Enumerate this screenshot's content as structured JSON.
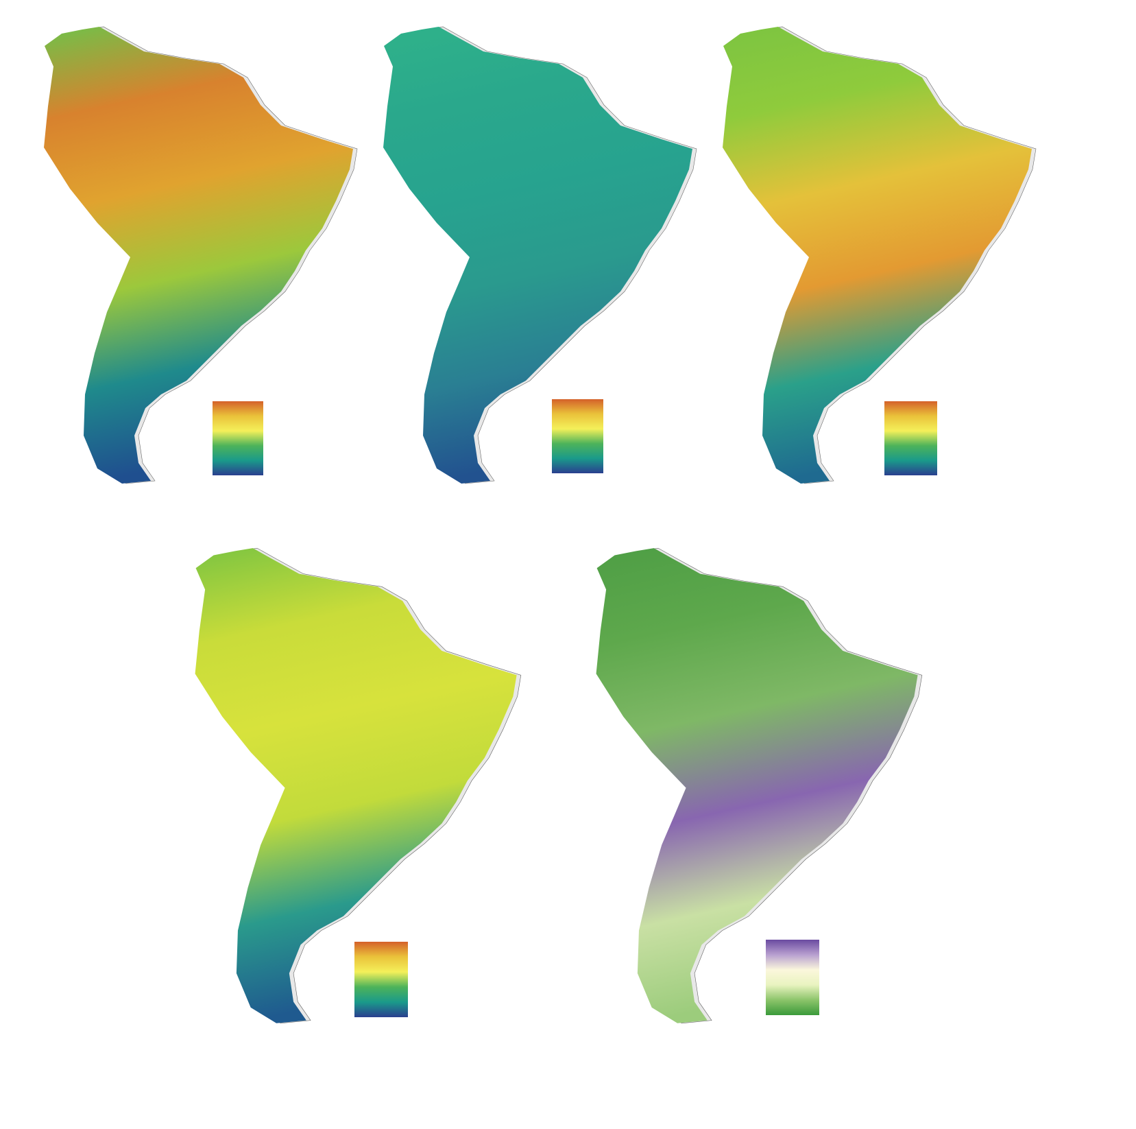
{
  "panels": [
    {
      "map_colors": [
        "#6fc24a",
        "#d8822e",
        "#e0a32f",
        "#9cc83c",
        "#1f8a8c",
        "#1f4f8f"
      ],
      "legend_colors": [
        "#d4612a",
        "#eac23a",
        "#f4f05a",
        "#4db35a",
        "#1a9a8a",
        "#2a3f8f"
      ]
    },
    {
      "map_colors": [
        "#2fb28a",
        "#2aa88c",
        "#27a38f",
        "#2a9a8e",
        "#2a7f93",
        "#22528f"
      ],
      "legend_colors": [
        "#d4612a",
        "#eac23a",
        "#f4f05a",
        "#4db35a",
        "#1a9a8a",
        "#2a3f8f"
      ]
    },
    {
      "map_colors": [
        "#7cc441",
        "#8fcb3c",
        "#e4c13a",
        "#e39a32",
        "#2aa08a",
        "#1f6a90"
      ],
      "legend_colors": [
        "#d4612a",
        "#eac23a",
        "#f4f05a",
        "#4db35a",
        "#1a9a8a",
        "#2a3f8f"
      ]
    },
    {
      "map_colors": [
        "#7cc441",
        "#c9dc3a",
        "#d7e23c",
        "#c2db3b",
        "#2a9a8c",
        "#1f5a8f"
      ],
      "legend_colors": [
        "#d4612a",
        "#eac23a",
        "#f4f05a",
        "#4db35a",
        "#1a9a8a",
        "#2a3f8f"
      ]
    },
    {
      "map_colors": [
        "#4e9e45",
        "#5ea84c",
        "#7fb866",
        "#8866b0",
        "#c9e0a4",
        "#9ccc7c"
      ],
      "legend_colors": [
        "#6a4aa0",
        "#b8a0d0",
        "#fbf7dc",
        "#e9f3c0",
        "#8cc46a",
        "#3a9a3a"
      ]
    }
  ]
}
